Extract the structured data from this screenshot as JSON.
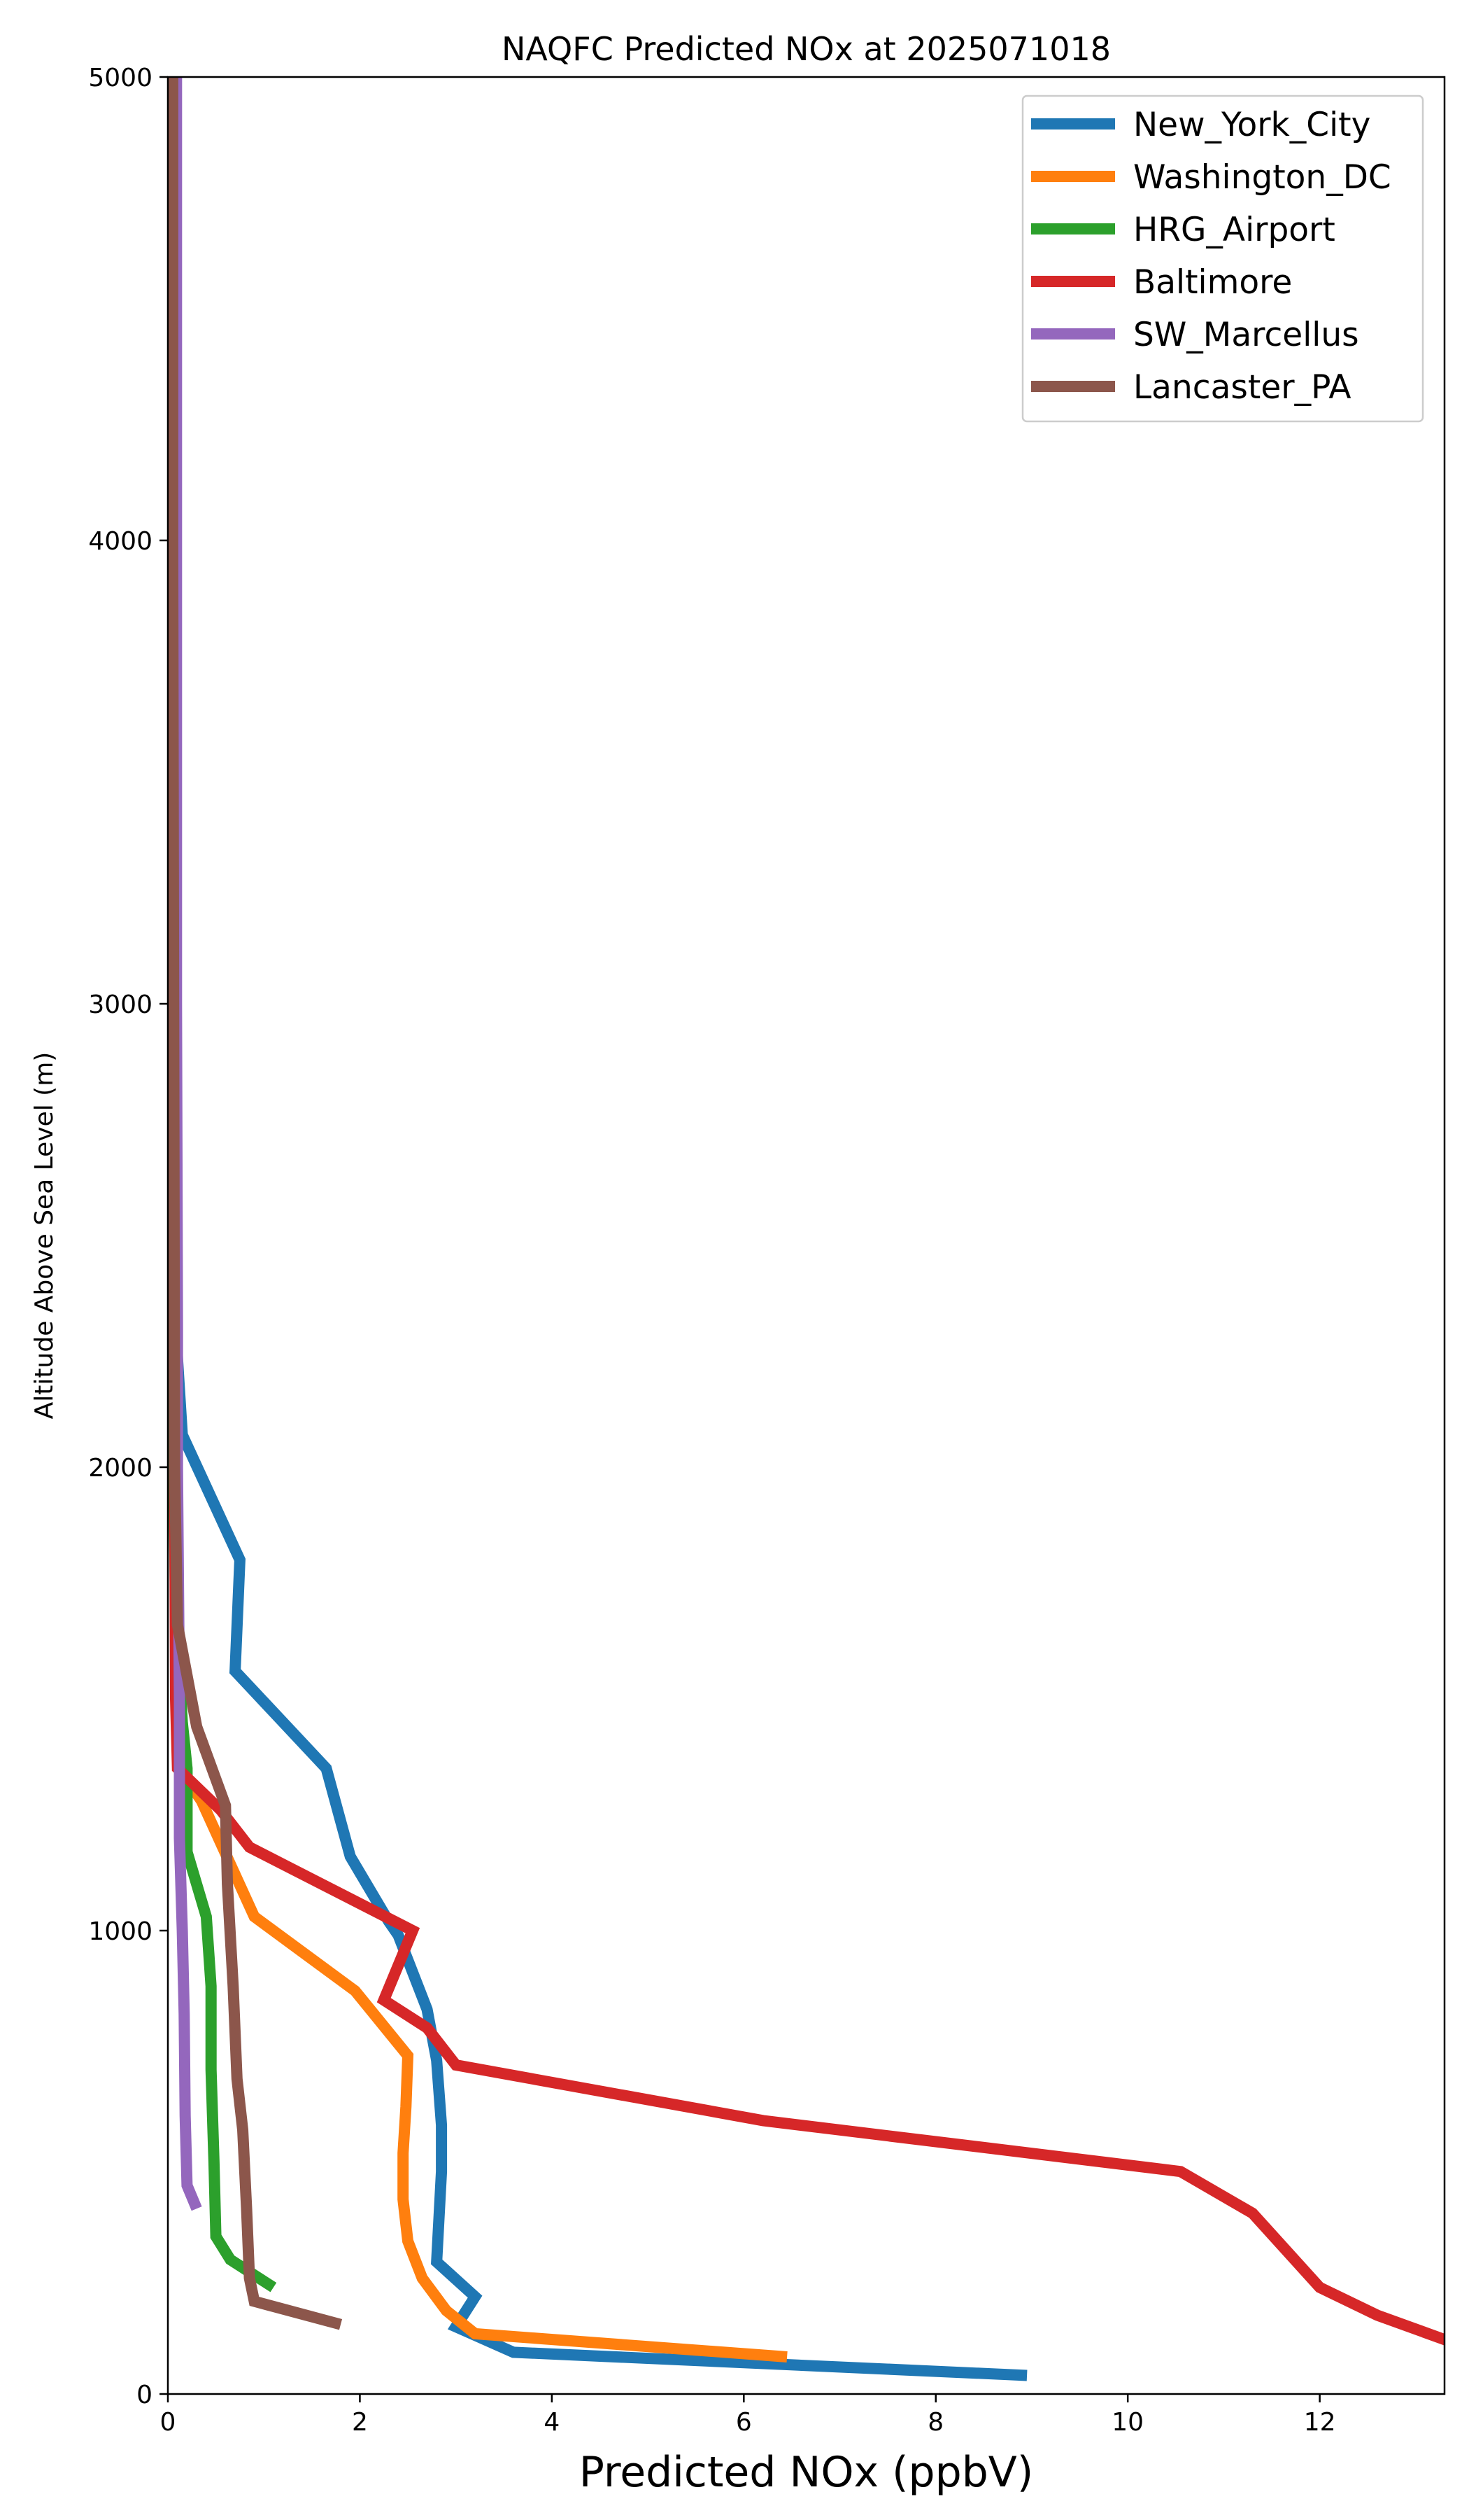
{
  "chart_data": {
    "type": "line",
    "title": "NAQFC Predicted NOx at 2025071018",
    "xlabel": "Predicted NOx (ppbV)",
    "ylabel": "Altitude Above Sea Level (m)",
    "xlim": [
      0,
      13.3
    ],
    "ylim": [
      0,
      5000
    ],
    "xticks": [
      0,
      2,
      4,
      6,
      8,
      10,
      12
    ],
    "yticks": [
      0,
      1000,
      2000,
      3000,
      4000,
      5000
    ],
    "grid": false,
    "legend_position": "top-right",
    "series": [
      {
        "name": "New_York_City",
        "color": "#1f77b4",
        "points": [
          [
            8.95,
            40
          ],
          [
            3.6,
            90
          ],
          [
            3.0,
            145
          ],
          [
            3.2,
            210
          ],
          [
            2.8,
            285
          ],
          [
            2.85,
            480
          ],
          [
            2.85,
            580
          ],
          [
            2.8,
            720
          ],
          [
            2.7,
            830
          ],
          [
            2.4,
            990
          ],
          [
            2.3,
            1020
          ],
          [
            1.9,
            1160
          ],
          [
            1.65,
            1350
          ],
          [
            0.7,
            1560
          ],
          [
            0.75,
            1800
          ],
          [
            0.15,
            2070
          ],
          [
            0.08,
            2300
          ],
          [
            0.07,
            3000
          ],
          [
            0.06,
            4000
          ],
          [
            0.05,
            5000
          ]
        ]
      },
      {
        "name": "Washington_DC",
        "color": "#ff7f0e",
        "points": [
          [
            6.45,
            80
          ],
          [
            3.2,
            130
          ],
          [
            2.9,
            180
          ],
          [
            2.65,
            250
          ],
          [
            2.5,
            330
          ],
          [
            2.45,
            420
          ],
          [
            2.45,
            520
          ],
          [
            2.48,
            620
          ],
          [
            2.5,
            730
          ],
          [
            1.95,
            870
          ],
          [
            0.9,
            1030
          ],
          [
            0.35,
            1280
          ],
          [
            0.12,
            1350
          ],
          [
            0.1,
            1600
          ],
          [
            0.08,
            2000
          ],
          [
            0.07,
            3000
          ],
          [
            0.06,
            4000
          ],
          [
            0.05,
            5000
          ]
        ]
      },
      {
        "name": "HRG_Airport",
        "color": "#2ca02c",
        "points": [
          [
            1.1,
            230
          ],
          [
            0.65,
            290
          ],
          [
            0.5,
            340
          ],
          [
            0.48,
            500
          ],
          [
            0.45,
            700
          ],
          [
            0.45,
            880
          ],
          [
            0.4,
            1030
          ],
          [
            0.2,
            1170
          ],
          [
            0.2,
            1350
          ],
          [
            0.15,
            1450
          ],
          [
            0.08,
            1700
          ],
          [
            0.06,
            2000
          ],
          [
            0.05,
            3000
          ],
          [
            0.05,
            4000
          ],
          [
            0.05,
            5000
          ]
        ]
      },
      {
        "name": "Baltimore",
        "color": "#d62728",
        "points": [
          [
            13.4,
            110
          ],
          [
            12.6,
            170
          ],
          [
            12.0,
            230
          ],
          [
            11.3,
            390
          ],
          [
            10.55,
            480
          ],
          [
            6.2,
            590
          ],
          [
            3.0,
            710
          ],
          [
            2.7,
            790
          ],
          [
            2.25,
            850
          ],
          [
            2.55,
            1000
          ],
          [
            0.85,
            1180
          ],
          [
            0.55,
            1260
          ],
          [
            0.1,
            1350
          ],
          [
            0.08,
            1500
          ],
          [
            0.07,
            2000
          ],
          [
            0.06,
            3000
          ],
          [
            0.05,
            4000
          ],
          [
            0.05,
            5000
          ]
        ]
      },
      {
        "name": "SW_Marcellus",
        "color": "#9467bd",
        "points": [
          [
            0.3,
            400
          ],
          [
            0.2,
            450
          ],
          [
            0.18,
            600
          ],
          [
            0.17,
            820
          ],
          [
            0.15,
            1000
          ],
          [
            0.12,
            1200
          ],
          [
            0.12,
            1500
          ],
          [
            0.1,
            2000
          ],
          [
            0.1,
            2300
          ],
          [
            0.09,
            3000
          ],
          [
            0.09,
            4000
          ],
          [
            0.09,
            5000
          ]
        ]
      },
      {
        "name": "Lancaster_PA",
        "color": "#8c564b",
        "points": [
          [
            1.8,
            150
          ],
          [
            0.9,
            200
          ],
          [
            0.85,
            250
          ],
          [
            0.82,
            400
          ],
          [
            0.78,
            570
          ],
          [
            0.72,
            680
          ],
          [
            0.68,
            880
          ],
          [
            0.62,
            1100
          ],
          [
            0.6,
            1270
          ],
          [
            0.3,
            1440
          ],
          [
            0.1,
            1660
          ],
          [
            0.07,
            2000
          ],
          [
            0.06,
            3000
          ],
          [
            0.05,
            4000
          ],
          [
            0.05,
            5000
          ]
        ]
      }
    ]
  }
}
